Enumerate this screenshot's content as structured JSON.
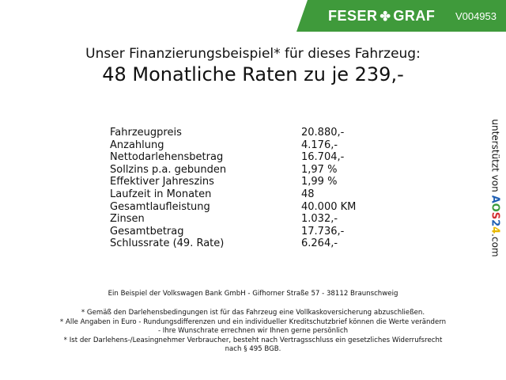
{
  "header": {
    "brand_left": "FESER",
    "brand_icon": "clover-icon",
    "brand_right": "GRAF",
    "vehicle_id": "V004953",
    "color": "#3f9a3b"
  },
  "title": {
    "line1": "Unser Finanzierungsbeispiel* für dieses Fahrzeug:",
    "line2": "48 Monatliche Raten zu je 239,-"
  },
  "rows": [
    {
      "label": "Fahrzeugpreis",
      "value": "20.880,-"
    },
    {
      "label": "Anzahlung",
      "value": "4.176,-"
    },
    {
      "label": "Nettodarlehensbetrag",
      "value": "16.704,-"
    },
    {
      "label": "Sollzins p.a. gebunden",
      "value": "1,97 %"
    },
    {
      "label": "Effektiver Jahreszins",
      "value": "1,99 %"
    },
    {
      "label": "Laufzeit in Monaten",
      "value": "48"
    },
    {
      "label": "Gesamtlaufleistung",
      "value": "40.000 KM"
    },
    {
      "label": "Zinsen",
      "value": "1.032,-"
    },
    {
      "label": "Gesamtbetrag",
      "value": "17.736,-"
    },
    {
      "label": "Schlussrate (49. Rate)",
      "value": "6.264,-"
    }
  ],
  "side": {
    "prefix": "unterstützt von",
    "logo": "AOS24",
    "suffix": ".com"
  },
  "footer": {
    "bank": "Ein Beispiel der Volkswagen Bank GmbH - Gifhorner Straße 57 - 38112 Braunschweig",
    "note1": "* Gemäß den Darlehensbedingungen ist für das Fahrzeug eine Vollkaskoversicherung abzuschließen.",
    "note2a": "* Alle Angaben in Euro - Rundungsdifferenzen und ein individueller Kreditschutzbrief können die Werte verändern",
    "note2b": "- Ihre Wunschrate errechnen wir Ihnen gerne persönlich",
    "note3a": "* Ist der Darlehens-/Leasingnehmer Verbraucher, besteht nach Vertragsschluss ein gesetzliches Widerrufsrecht",
    "note3b": "nach § 495 BGB."
  }
}
